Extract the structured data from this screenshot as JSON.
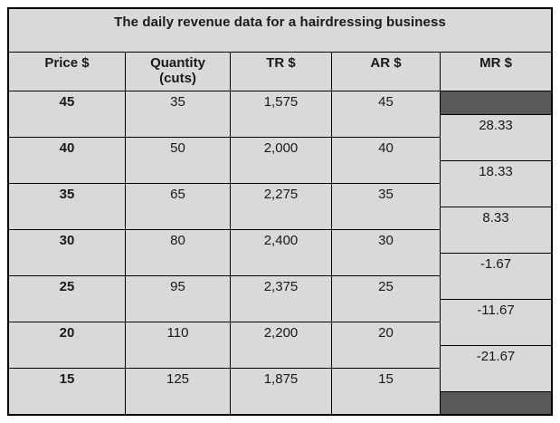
{
  "table": {
    "title": "The daily revenue data for a hairdressing business",
    "headers": {
      "price": "Price $",
      "quantity_line1": "Quantity",
      "quantity_line2": "(cuts)",
      "tr": "TR $",
      "ar": "AR $",
      "mr": "MR $"
    },
    "rows": [
      {
        "price": "45",
        "quantity": "35",
        "tr": "1,575",
        "ar": "45"
      },
      {
        "price": "40",
        "quantity": "50",
        "tr": "2,000",
        "ar": "40"
      },
      {
        "price": "35",
        "quantity": "65",
        "tr": "2,275",
        "ar": "35"
      },
      {
        "price": "30",
        "quantity": "80",
        "tr": "2,400",
        "ar": "30"
      },
      {
        "price": "25",
        "quantity": "95",
        "tr": "2,375",
        "ar": "25"
      },
      {
        "price": "20",
        "quantity": "110",
        "tr": "2,200",
        "ar": "20"
      },
      {
        "price": "15",
        "quantity": "125",
        "tr": "1,875",
        "ar": "15"
      }
    ],
    "mr_values": [
      "28.33",
      "18.33",
      "8.33",
      "-1.67",
      "-11.67",
      "-21.67"
    ],
    "colors": {
      "cell_bg": "#d9d9d9",
      "blocked_cell_bg": "#595959",
      "border": "#000000"
    }
  }
}
